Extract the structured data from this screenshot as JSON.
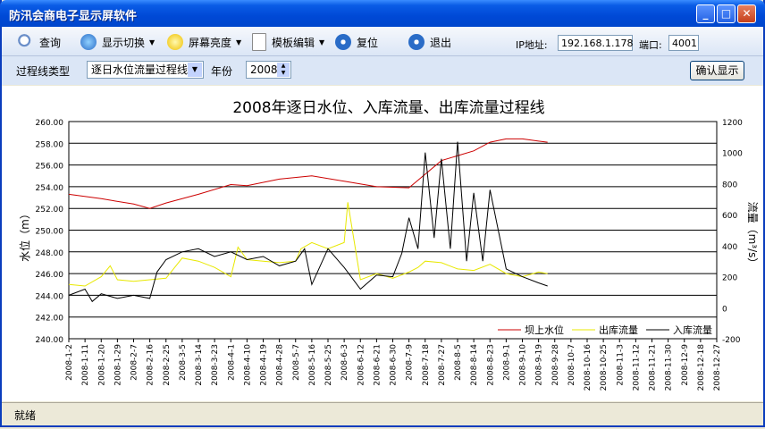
{
  "window": {
    "title": "防汛会商电子显示屏软件",
    "minimize": "_",
    "maximize": "□",
    "close": "✕"
  },
  "toolbar": {
    "query": "查询",
    "display_switch": "显示切换",
    "brightness": "屏幕亮度",
    "template_edit": "模板编辑",
    "reset": "复位",
    "exit": "退出",
    "ip_label": "IP地址:",
    "ip_value": "192.168.1.178",
    "port_label": "端口:",
    "port_value": "4001"
  },
  "filters": {
    "type_label": "过程线类型",
    "type_value": "逐日水位流量过程线",
    "year_label": "年份",
    "year_value": "2008",
    "confirm": "确认显示"
  },
  "status": {
    "text": "就绪"
  },
  "colors": {
    "water_level": "#cc0000",
    "outflow": "#e8e800",
    "inflow": "#000000"
  },
  "chart_data": {
    "type": "line",
    "title": "2008年逐日水位、入库流量、出库流量过程线",
    "ylabel_left": "水位（m）",
    "ylabel_right": "流量（m³/s）",
    "ylim_left": [
      240,
      260
    ],
    "ylim_right": [
      -200,
      1200
    ],
    "yticks_left": [
      "260.00",
      "258.00",
      "256.00",
      "254.00",
      "252.00",
      "250.00",
      "248.00",
      "246.00",
      "244.00",
      "242.00",
      "240.00"
    ],
    "yticks_right": [
      "1200",
      "1000",
      "800",
      "600",
      "400",
      "200",
      "0",
      "-200"
    ],
    "x_ticks": [
      "2008-1-2",
      "2008-1-11",
      "2008-1-20",
      "2008-1-29",
      "2008-2-7",
      "2008-2-16",
      "2008-2-25",
      "2008-3-5",
      "2008-3-14",
      "2008-3-23",
      "2008-4-1",
      "2008-4-10",
      "2008-4-19",
      "2008-4-28",
      "2008-5-7",
      "2008-5-16",
      "2008-5-25",
      "2008-6-3",
      "2008-6-12",
      "2008-6-21",
      "2008-6-30",
      "2008-7-9",
      "2008-7-18",
      "2008-7-27",
      "2008-8-5",
      "2008-8-14",
      "2008-8-23",
      "2008-9-1",
      "2008-9-10",
      "2008-9-19",
      "2008-9-28",
      "2008-10-7",
      "2008-10-16",
      "2008-10-25",
      "2008-11-3",
      "2008-11-12",
      "2008-11-21",
      "2008-11-30",
      "2008-12-9",
      "2008-12-18",
      "2008-12-27"
    ],
    "legend": [
      "坝上水位",
      "出库流量",
      "入库流量"
    ],
    "legend_position": "bottom-right",
    "grid": true,
    "series": [
      {
        "name": "坝上水位",
        "axis": "left",
        "x": [
          "2008-1-2",
          "2008-1-20",
          "2008-2-7",
          "2008-2-16",
          "2008-2-25",
          "2008-3-14",
          "2008-4-1",
          "2008-4-10",
          "2008-4-28",
          "2008-5-16",
          "2008-6-3",
          "2008-6-21",
          "2008-7-9",
          "2008-7-27",
          "2008-8-14",
          "2008-8-23",
          "2008-9-1",
          "2008-9-10",
          "2008-9-19",
          "2008-9-24"
        ],
        "values": [
          253.3,
          252.9,
          252.4,
          252.0,
          252.5,
          253.3,
          254.2,
          254.1,
          254.7,
          255.0,
          254.5,
          254.0,
          253.9,
          256.4,
          257.3,
          258.1,
          258.4,
          258.4,
          258.2,
          258.1
        ]
      },
      {
        "name": "出库流量",
        "axis": "right",
        "x": [
          "2008-1-2",
          "2008-1-11",
          "2008-1-20",
          "2008-1-25",
          "2008-1-29",
          "2008-2-7",
          "2008-2-16",
          "2008-2-25",
          "2008-3-5",
          "2008-3-14",
          "2008-3-23",
          "2008-4-1",
          "2008-4-5",
          "2008-4-10",
          "2008-4-19",
          "2008-4-28",
          "2008-5-7",
          "2008-5-10",
          "2008-5-16",
          "2008-5-25",
          "2008-6-3",
          "2008-6-5",
          "2008-6-12",
          "2008-6-21",
          "2008-6-30",
          "2008-7-9",
          "2008-7-14",
          "2008-7-18",
          "2008-7-27",
          "2008-8-5",
          "2008-8-14",
          "2008-8-23",
          "2008-9-1",
          "2008-9-10",
          "2008-9-19",
          "2008-9-24"
        ],
        "values": [
          150,
          140,
          200,
          270,
          180,
          170,
          180,
          190,
          320,
          300,
          260,
          200,
          390,
          310,
          300,
          290,
          300,
          380,
          420,
          380,
          420,
          680,
          180,
          220,
          190,
          230,
          260,
          300,
          290,
          250,
          240,
          280,
          220,
          200,
          230,
          220
        ]
      },
      {
        "name": "入库流量",
        "axis": "right",
        "x": [
          "2008-1-2",
          "2008-1-11",
          "2008-1-15",
          "2008-1-20",
          "2008-1-29",
          "2008-2-7",
          "2008-2-16",
          "2008-2-20",
          "2008-2-25",
          "2008-3-5",
          "2008-3-14",
          "2008-3-23",
          "2008-4-1",
          "2008-4-10",
          "2008-4-19",
          "2008-4-28",
          "2008-5-7",
          "2008-5-12",
          "2008-5-16",
          "2008-5-25",
          "2008-6-3",
          "2008-6-12",
          "2008-6-21",
          "2008-6-30",
          "2008-7-5",
          "2008-7-9",
          "2008-7-14",
          "2008-7-18",
          "2008-7-23",
          "2008-7-27",
          "2008-8-1",
          "2008-8-5",
          "2008-8-10",
          "2008-8-14",
          "2008-8-19",
          "2008-8-23",
          "2008-9-1",
          "2008-9-10",
          "2008-9-19",
          "2008-9-24"
        ],
        "values": [
          80,
          120,
          40,
          90,
          60,
          80,
          60,
          230,
          310,
          360,
          380,
          330,
          360,
          310,
          330,
          270,
          300,
          380,
          150,
          380,
          260,
          120,
          210,
          200,
          350,
          580,
          380,
          1000,
          450,
          960,
          380,
          1070,
          300,
          740,
          300,
          760,
          250,
          200,
          160,
          140
        ]
      }
    ]
  }
}
